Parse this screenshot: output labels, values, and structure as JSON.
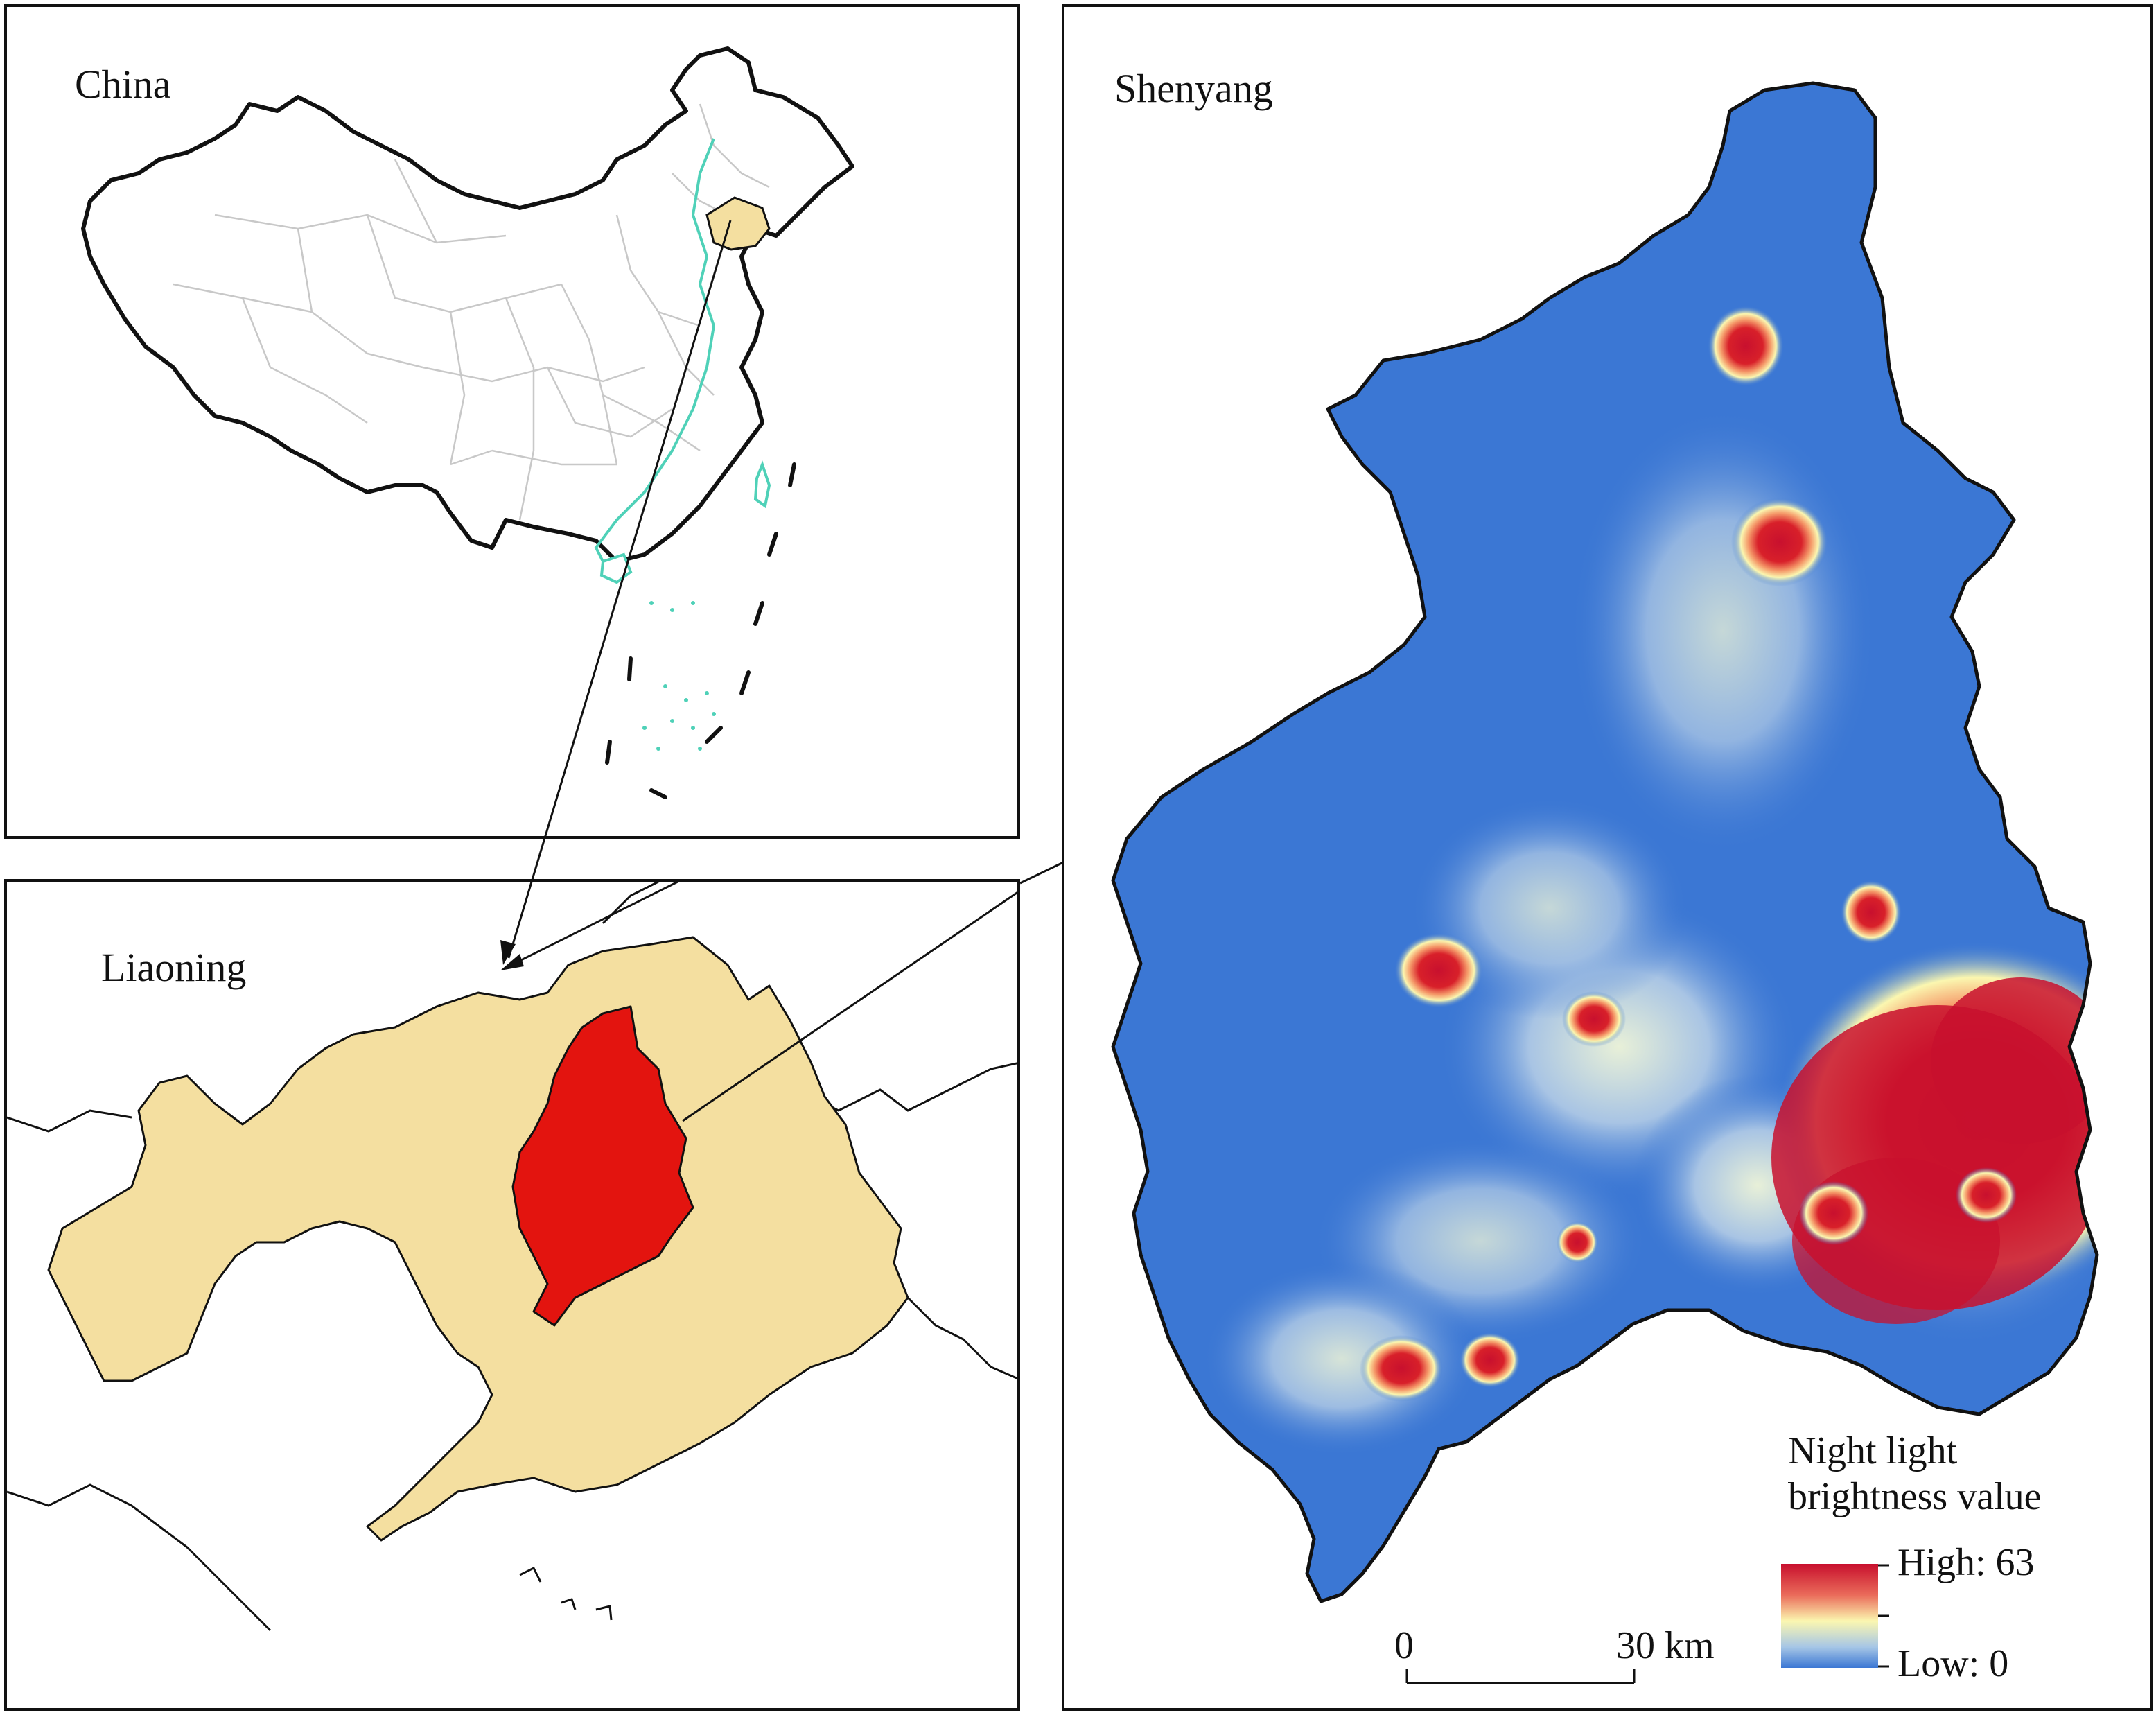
{
  "panels": {
    "china": {
      "title": "China"
    },
    "liaoning": {
      "title": "Liaoning"
    },
    "shenyang": {
      "title": "Shenyang"
    }
  },
  "legend": {
    "title_line1": "Night light",
    "title_line2": "brightness value",
    "high_label": "High: 63",
    "low_label": "Low: 0",
    "high_value": 63,
    "low_value": 0,
    "colors": [
      "#c8102e",
      "#fbf7b0",
      "#3b77d4"
    ]
  },
  "scale_bar": {
    "start_label": "0",
    "end_label": "30 km"
  },
  "colors": {
    "liaoning_fill": "#f4dfa0",
    "shenyang_fill": "#e3140f",
    "low_light": "#3b77d4",
    "coast_line": "#4fd1b8"
  }
}
